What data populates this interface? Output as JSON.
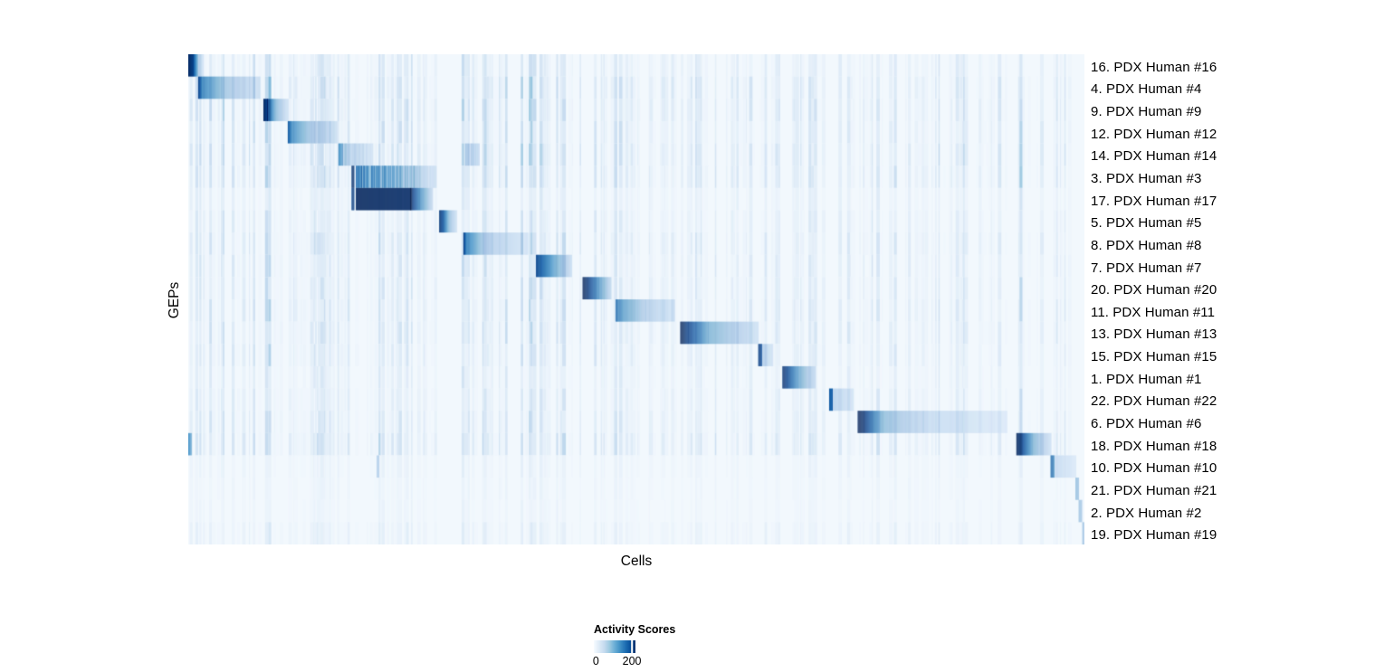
{
  "chart_data": {
    "type": "heatmap",
    "title": "",
    "xlabel": "Cells",
    "ylabel": "GEPs",
    "grid": false,
    "colorbar": {
      "title": "Activity Scores",
      "min_label": "0",
      "min_pos": 0.05,
      "tick_label": "200",
      "tick_pos": 0.915,
      "value_range": [
        0,
        220
      ]
    },
    "colormap_stops": [
      [
        0.0,
        "#f7fbff"
      ],
      [
        0.125,
        "#deebf7"
      ],
      [
        0.25,
        "#c6dbef"
      ],
      [
        0.375,
        "#9ecae1"
      ],
      [
        0.5,
        "#6baed6"
      ],
      [
        0.625,
        "#4292c6"
      ],
      [
        0.75,
        "#2171b5"
      ],
      [
        0.875,
        "#08519c"
      ],
      [
        1.0,
        "#08306b"
      ]
    ],
    "background_value": 0.025,
    "noise_seed": 1337,
    "noise_bands": [
      [
        0.0,
        0.083,
        0.3
      ],
      [
        0.083,
        0.104,
        0.5
      ],
      [
        0.112,
        0.17,
        0.28
      ],
      [
        0.14,
        0.277,
        0.33
      ],
      [
        0.305,
        0.357,
        0.33
      ],
      [
        0.371,
        0.437,
        0.38
      ],
      [
        0.451,
        0.59,
        0.26
      ],
      [
        0.6,
        0.64,
        0.18
      ],
      [
        0.643,
        0.661,
        0.25
      ],
      [
        0.674,
        0.716,
        0.3
      ],
      [
        0.724,
        0.918,
        0.26
      ],
      [
        0.926,
        0.952,
        0.42
      ],
      [
        0.96,
        0.984,
        0.26
      ]
    ],
    "rows": [
      {
        "label": "16. PDX Human #16",
        "noise_gain": 0.7,
        "segments": [
          [
            0.0,
            0.005,
            1.0,
            0.9,
            0
          ],
          [
            0.005,
            0.011,
            0.9,
            0.25,
            0
          ],
          [
            0.011,
            0.017,
            0.25,
            0.05,
            0
          ]
        ]
      },
      {
        "label": "4. PDX Human #4",
        "noise_gain": 1.0,
        "segments": [
          [
            0.011,
            0.015,
            0.9,
            0.6,
            0
          ],
          [
            0.015,
            0.04,
            0.6,
            0.3,
            0
          ],
          [
            0.04,
            0.08,
            0.3,
            0.12,
            0
          ]
        ]
      },
      {
        "label": "9. PDX Human #9",
        "noise_gain": 1.0,
        "segments": [
          [
            0.0838,
            0.088,
            1.0,
            0.85,
            0
          ],
          [
            0.088,
            0.097,
            0.85,
            0.35,
            0
          ],
          [
            0.097,
            0.112,
            0.35,
            0.07,
            0
          ]
        ]
      },
      {
        "label": "12. PDX Human #12",
        "noise_gain": 0.85,
        "segments": [
          [
            0.111,
            0.115,
            0.8,
            0.55,
            0
          ],
          [
            0.115,
            0.135,
            0.55,
            0.28,
            0
          ],
          [
            0.135,
            0.166,
            0.28,
            0.12,
            0
          ]
        ]
      },
      {
        "label": "14. PDX Human #14",
        "noise_gain": 1.0,
        "segments": [
          [
            0.1676,
            0.172,
            0.55,
            0.4,
            0
          ],
          [
            0.172,
            0.2061,
            0.4,
            0.12,
            1
          ],
          [
            0.309,
            0.325,
            0.35,
            0.15,
            1
          ]
        ]
      },
      {
        "label": "3. PDX Human #3",
        "noise_gain": 0.9,
        "segments": [
          [
            0.1822,
            0.1852,
            0.95,
            0.95,
            0
          ],
          [
            0.187,
            0.252,
            0.85,
            0.4,
            1
          ],
          [
            0.252,
            0.277,
            0.4,
            0.1,
            1
          ]
        ]
      },
      {
        "label": "17. PDX Human #17",
        "noise_gain": 0.45,
        "segments": [
          [
            0.1822,
            0.1852,
            0.9,
            0.9,
            0
          ],
          [
            0.187,
            0.248,
            1.0,
            0.98,
            0
          ],
          [
            0.248,
            0.258,
            0.98,
            0.55,
            0
          ],
          [
            0.258,
            0.273,
            0.55,
            0.12,
            0
          ]
        ]
      },
      {
        "label": "5. PDX Human #5",
        "noise_gain": 0.6,
        "segments": [
          [
            0.28,
            0.284,
            0.95,
            0.8,
            0
          ],
          [
            0.284,
            0.29,
            0.8,
            0.35,
            0
          ],
          [
            0.29,
            0.3,
            0.35,
            0.07,
            0
          ]
        ]
      },
      {
        "label": "8. PDX Human #8",
        "noise_gain": 0.8,
        "segments": [
          [
            0.307,
            0.31,
            0.9,
            0.6,
            0
          ],
          [
            0.31,
            0.33,
            0.6,
            0.25,
            0
          ],
          [
            0.33,
            0.379,
            0.25,
            0.08,
            0
          ]
        ]
      },
      {
        "label": "7. PDX Human #7",
        "noise_gain": 0.7,
        "segments": [
          [
            0.388,
            0.393,
            0.9,
            0.75,
            0
          ],
          [
            0.393,
            0.41,
            0.75,
            0.4,
            0
          ],
          [
            0.41,
            0.428,
            0.4,
            0.12,
            0
          ]
        ]
      },
      {
        "label": "20. PDX Human #20",
        "noise_gain": 0.7,
        "segments": [
          [
            0.44,
            0.446,
            1.0,
            0.9,
            0
          ],
          [
            0.446,
            0.458,
            0.9,
            0.5,
            0
          ],
          [
            0.458,
            0.472,
            0.5,
            0.15,
            0
          ]
        ]
      },
      {
        "label": "11. PDX Human #11",
        "noise_gain": 0.8,
        "segments": [
          [
            0.477,
            0.481,
            0.7,
            0.5,
            0
          ],
          [
            0.481,
            0.51,
            0.5,
            0.22,
            0
          ],
          [
            0.51,
            0.543,
            0.22,
            0.08,
            0
          ]
        ]
      },
      {
        "label": "13. PDX Human #13",
        "noise_gain": 0.8,
        "segments": [
          [
            0.549,
            0.558,
            1.0,
            0.85,
            0
          ],
          [
            0.558,
            0.58,
            0.85,
            0.4,
            0
          ],
          [
            0.58,
            0.636,
            0.4,
            0.1,
            0
          ]
        ]
      },
      {
        "label": "15. PDX Human #15",
        "noise_gain": 0.7,
        "segments": [
          [
            0.636,
            0.6395,
            0.9,
            0.85,
            0
          ],
          [
            0.6395,
            0.652,
            0.25,
            0.07,
            0
          ]
        ]
      },
      {
        "label": "1. PDX Human #1",
        "noise_gain": 0.5,
        "segments": [
          [
            0.663,
            0.668,
            0.95,
            0.85,
            0
          ],
          [
            0.668,
            0.68,
            0.85,
            0.45,
            0
          ],
          [
            0.68,
            0.7,
            0.45,
            0.1,
            0
          ]
        ]
      },
      {
        "label": "22. PDX Human #22",
        "noise_gain": 0.6,
        "segments": [
          [
            0.7151,
            0.7182,
            0.8,
            0.75,
            0
          ],
          [
            0.7182,
            0.742,
            0.22,
            0.07,
            0
          ]
        ]
      },
      {
        "label": "6. PDX Human #6",
        "noise_gain": 0.7,
        "segments": [
          [
            0.747,
            0.754,
            1.0,
            0.92,
            0
          ],
          [
            0.754,
            0.775,
            0.92,
            0.35,
            0
          ],
          [
            0.775,
            0.82,
            0.35,
            0.15,
            0
          ],
          [
            0.82,
            0.913,
            0.15,
            0.05,
            0
          ]
        ]
      },
      {
        "label": "18. PDX Human #18",
        "noise_gain": 0.9,
        "segments": [
          [
            0.0,
            0.004,
            0.55,
            0.3,
            0
          ],
          [
            0.924,
            0.929,
            1.0,
            0.9,
            0
          ],
          [
            0.929,
            0.942,
            0.9,
            0.4,
            0
          ],
          [
            0.942,
            0.963,
            0.4,
            0.08,
            0
          ]
        ]
      },
      {
        "label": "10. PDX Human #10",
        "noise_gain": 0.25,
        "segments": [
          [
            0.2101,
            0.2131,
            0.22,
            0.2,
            0
          ],
          [
            0.9622,
            0.9657,
            0.7,
            0.6,
            0
          ],
          [
            0.9657,
            0.99,
            0.15,
            0.05,
            0
          ]
        ]
      },
      {
        "label": "21. PDX Human #21",
        "noise_gain": 0.18,
        "segments": [
          [
            0.9899,
            0.9932,
            0.32,
            0.28,
            0
          ]
        ]
      },
      {
        "label": "2. PDX Human #2",
        "noise_gain": 0.18,
        "segments": [
          [
            0.9935,
            0.9968,
            0.3,
            0.26,
            0
          ]
        ]
      },
      {
        "label": "19. PDX Human #19",
        "noise_gain": 0.35,
        "segments": [
          [
            0.9975,
            1.0,
            0.28,
            0.25,
            0
          ]
        ]
      }
    ]
  }
}
